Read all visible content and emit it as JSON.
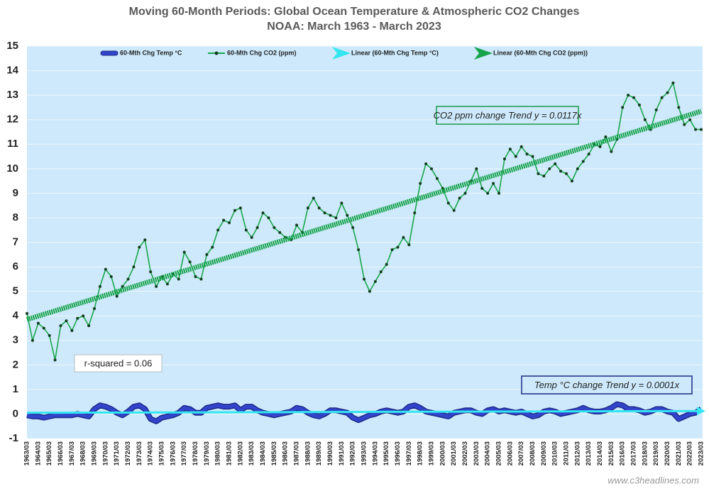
{
  "chart_data": {
    "type": "line",
    "title": "Moving 60-Month Periods: Global Ocean Temperature & Atmospheric CO2 Changes",
    "subtitle": "NOAA: March 1963 - March 2023",
    "categories": [
      "1963/03",
      null,
      "1964/03",
      null,
      "1965/03",
      null,
      "1966/03",
      null,
      "1967/03",
      null,
      "1968/03",
      null,
      "1969/03",
      null,
      "1970/03",
      null,
      "1971/03",
      null,
      "1972/03",
      null,
      "1973/03",
      null,
      "1974/03",
      null,
      "1975/03",
      null,
      "1976/03",
      null,
      "1977/03",
      null,
      "1978/03",
      null,
      "1979/03",
      null,
      "1980/03",
      null,
      "1981/03",
      null,
      "1982/03",
      null,
      "1983/03",
      null,
      "1984/03",
      null,
      "1985/03",
      null,
      "1986/03",
      null,
      "1987/03",
      null,
      "1988/03",
      null,
      "1989/03",
      null,
      "1990/03",
      null,
      "1991/03",
      null,
      "1992/03",
      null,
      "1993/03",
      null,
      "1994/03",
      null,
      "1995/03",
      null,
      "1996/03",
      null,
      "1997/03",
      null,
      "1998/03",
      null,
      "1999/03",
      null,
      "2000/03",
      null,
      "2001/03",
      null,
      "2002/03",
      null,
      "2003/03",
      null,
      "2004/03",
      null,
      "2005/03",
      null,
      "2006/03",
      null,
      "2007/03",
      null,
      "2008/03",
      null,
      "2009/03",
      null,
      "2010/03",
      null,
      "2011/03",
      null,
      "2012/03",
      null,
      "2013/03",
      null,
      "2014/03",
      null,
      "2015/03",
      null,
      "2016/03",
      null,
      "2017/03",
      null,
      "2018/03",
      null,
      "2019/03",
      null,
      "2020/03",
      null,
      "2021/03",
      null,
      "2022/03",
      null,
      "2023/03"
    ],
    "series": [
      {
        "name": "60-Mth Chg Temp °C",
        "color": "#3344cc",
        "trendline": {
          "name": "Linear (60-Mth Chg Temp °C)",
          "color": "#33e6f0"
        },
        "values": [
          -0.05,
          -0.1,
          -0.1,
          -0.15,
          -0.1,
          -0.05,
          -0.05,
          -0.05,
          -0.05,
          0,
          -0.05,
          -0.1,
          0.2,
          0.35,
          0.3,
          0.2,
          0.05,
          -0.05,
          0.1,
          0.3,
          0.35,
          0.2,
          -0.2,
          -0.3,
          -0.15,
          -0.1,
          -0.05,
          0.05,
          0.25,
          0.2,
          0.05,
          0.05,
          0.25,
          0.3,
          0.35,
          0.3,
          0.3,
          0.35,
          0.15,
          0.3,
          0.3,
          0.15,
          0.05,
          0,
          -0.05,
          0,
          0.05,
          0.1,
          0.25,
          0.2,
          0.05,
          -0.05,
          -0.1,
          0,
          0.15,
          0.15,
          0.1,
          0.05,
          -0.15,
          -0.25,
          -0.15,
          -0.05,
          0,
          0.1,
          0.15,
          0.1,
          0.05,
          0.1,
          0.3,
          0.35,
          0.25,
          0.1,
          0.05,
          0,
          -0.05,
          -0.1,
          0.05,
          0.1,
          0.15,
          0.15,
          0.05,
          0,
          0.15,
          0.2,
          0.1,
          0.15,
          0.1,
          0.05,
          0.1,
          0,
          -0.1,
          -0.05,
          0.1,
          0.15,
          0.1,
          0,
          0.05,
          0.1,
          0.15,
          0.25,
          0.15,
          0.1,
          0.1,
          0.15,
          0.25,
          0.4,
          0.35,
          0.2,
          0.2,
          0.15,
          0.05,
          0.1,
          0.2,
          0.2,
          0.1,
          0.05,
          -0.2,
          -0.1,
          0,
          0.05,
          0.2
        ]
      },
      {
        "name": "60-Mth Chg CO2 (ppm)",
        "color": "#1aa64a",
        "trendline": {
          "name": "Linear (60-Mth Chg CO2 (ppm))",
          "color": "#16a34a"
        },
        "values": [
          4.1,
          3.0,
          3.7,
          3.5,
          3.2,
          2.2,
          3.6,
          3.8,
          3.4,
          3.9,
          4.0,
          3.6,
          4.3,
          5.2,
          5.9,
          5.6,
          4.8,
          5.2,
          5.5,
          6.0,
          6.8,
          7.1,
          5.8,
          5.2,
          5.6,
          5.3,
          5.7,
          5.5,
          6.6,
          6.2,
          5.6,
          5.5,
          6.5,
          6.8,
          7.5,
          7.9,
          7.8,
          8.3,
          8.4,
          7.5,
          7.2,
          7.6,
          8.2,
          8.0,
          7.6,
          7.4,
          7.2,
          7.1,
          7.7,
          7.4,
          8.4,
          8.8,
          8.4,
          8.2,
          8.1,
          8.0,
          8.6,
          8.1,
          7.6,
          6.7,
          5.5,
          5.0,
          5.4,
          5.8,
          6.1,
          6.7,
          6.8,
          7.2,
          6.9,
          8.2,
          9.4,
          10.2,
          10.0,
          9.6,
          9.2,
          8.6,
          8.3,
          8.8,
          9.0,
          9.5,
          10.0,
          9.2,
          9.0,
          9.4,
          9.0,
          10.4,
          10.8,
          10.5,
          10.9,
          10.6,
          10.5,
          9.8,
          9.7,
          10.0,
          10.2,
          9.9,
          9.8,
          9.5,
          10.0,
          10.3,
          10.6,
          11.0,
          10.9,
          11.3,
          10.7,
          11.2,
          12.5,
          13.0,
          12.9,
          12.6,
          12.0,
          11.6,
          12.4,
          12.9,
          13.1,
          13.5,
          12.5,
          11.8,
          12.0,
          11.6,
          11.6
        ]
      }
    ],
    "ylim": [
      -1,
      15
    ],
    "yticks": [
      -1,
      0,
      1,
      2,
      3,
      4,
      5,
      6,
      7,
      8,
      9,
      10,
      11,
      12,
      13,
      14,
      15
    ],
    "grid": true,
    "annotations": [
      {
        "text": "CO2 ppm change Trend y = 0.0117x",
        "color": "#1a9a4a"
      },
      {
        "text": "Temp °C change Trend y = 0.0001x",
        "color": "#1f2a8a"
      },
      {
        "text": "r-squared = 0.06",
        "color": "#bbbbbb"
      }
    ],
    "watermark": "www.c3headlines.com"
  }
}
